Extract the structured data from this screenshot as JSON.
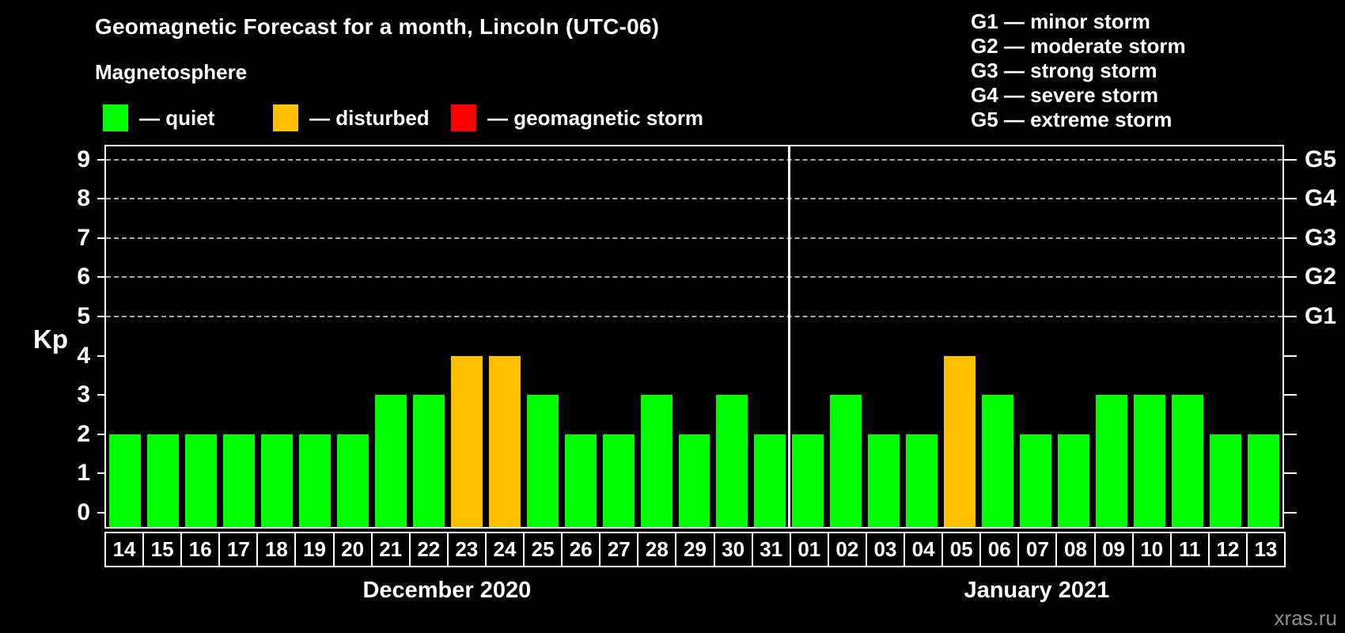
{
  "header": {
    "title": "Geomagnetic Forecast for a month, Lincoln (UTC-06)",
    "legend_heading": "Magnetosphere",
    "legend_items": [
      {
        "name": "quiet",
        "label": "— quiet",
        "color": "#00ff00"
      },
      {
        "name": "disturbed",
        "label": "— disturbed",
        "color": "#ffc000"
      },
      {
        "name": "storm",
        "label": "— geomagnetic storm",
        "color": "#ff0000"
      }
    ],
    "storm_scale": [
      {
        "code": "G1",
        "label": "— minor storm"
      },
      {
        "code": "G2",
        "label": "— moderate storm"
      },
      {
        "code": "G3",
        "label": "— strong storm"
      },
      {
        "code": "G4",
        "label": "— severe storm"
      },
      {
        "code": "G5",
        "label": "— extreme storm"
      }
    ]
  },
  "watermark": "xras.ru",
  "chart_data": {
    "type": "bar",
    "title": "Geomagnetic Forecast for a month, Lincoln (UTC-06)",
    "ylabel": "Kp",
    "ylim": [
      0,
      9
    ],
    "y_ticks": [
      0,
      1,
      2,
      3,
      4,
      5,
      6,
      7,
      8,
      9
    ],
    "gridlines_at_kp": [
      5,
      6,
      7,
      8,
      9
    ],
    "grid": "horizontal dashed lines at storm levels G1-G5",
    "legend_position": "top-left",
    "right_axis_labels": [
      {
        "code": "G1",
        "kp": 5
      },
      {
        "code": "G2",
        "kp": 6
      },
      {
        "code": "G3",
        "kp": 7
      },
      {
        "code": "G4",
        "kp": 8
      },
      {
        "code": "G5",
        "kp": 9
      }
    ],
    "months": [
      {
        "name": "December 2020",
        "days": [
          "14",
          "15",
          "16",
          "17",
          "18",
          "19",
          "20",
          "21",
          "22",
          "23",
          "24",
          "25",
          "26",
          "27",
          "28",
          "29",
          "30",
          "31"
        ]
      },
      {
        "name": "January 2021",
        "days": [
          "01",
          "02",
          "03",
          "04",
          "05",
          "06",
          "07",
          "08",
          "09",
          "10",
          "11",
          "12",
          "13"
        ]
      }
    ],
    "values": [
      2,
      2,
      2,
      2,
      2,
      2,
      2,
      3,
      3,
      4,
      4,
      3,
      2,
      2,
      3,
      2,
      3,
      2,
      2,
      3,
      2,
      2,
      4,
      3,
      2,
      2,
      3,
      3,
      3,
      2,
      2
    ],
    "statuses": [
      "quiet",
      "quiet",
      "quiet",
      "quiet",
      "quiet",
      "quiet",
      "quiet",
      "quiet",
      "quiet",
      "disturbed",
      "disturbed",
      "quiet",
      "quiet",
      "quiet",
      "quiet",
      "quiet",
      "quiet",
      "quiet",
      "quiet",
      "quiet",
      "quiet",
      "quiet",
      "disturbed",
      "quiet",
      "quiet",
      "quiet",
      "quiet",
      "quiet",
      "quiet",
      "quiet",
      "quiet"
    ],
    "status_colors": {
      "quiet": "#00ff00",
      "disturbed": "#ffc000",
      "storm": "#ff0000"
    }
  }
}
